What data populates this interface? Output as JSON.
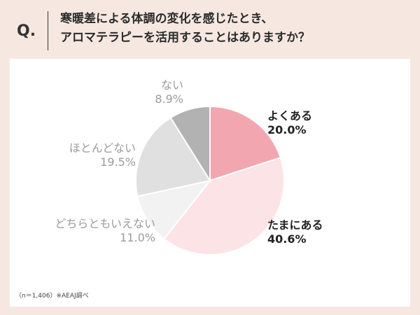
{
  "header": {
    "q_mark": "Q.",
    "question_line1": "寒暖差による体調の変化を感じたとき、",
    "question_line2": "アロマテラピーを活用することはありますか？"
  },
  "chart_data": {
    "type": "pie",
    "title": "",
    "categories": [
      "よくある",
      "たまにある",
      "どちらともいえない",
      "ほとんどない",
      "ない"
    ],
    "values": [
      20.0,
      40.6,
      11.0,
      19.5,
      8.9
    ],
    "value_labels": [
      "20.0%",
      "40.6%",
      "11.0%",
      "19.5%",
      "8.9%"
    ],
    "colors": [
      "#f2a7b0",
      "#fbe3e6",
      "#f2f2f2",
      "#e0e0e0",
      "#b2b2b2"
    ],
    "label_colors": [
      "#222222",
      "#222222",
      "#9b9b9b",
      "#9b9b9b",
      "#9b9b9b"
    ],
    "start": "12 o'clock",
    "direction": "clockwise",
    "legend": "none"
  },
  "footnote": "（n＝1,406）※AEAJ調べ"
}
